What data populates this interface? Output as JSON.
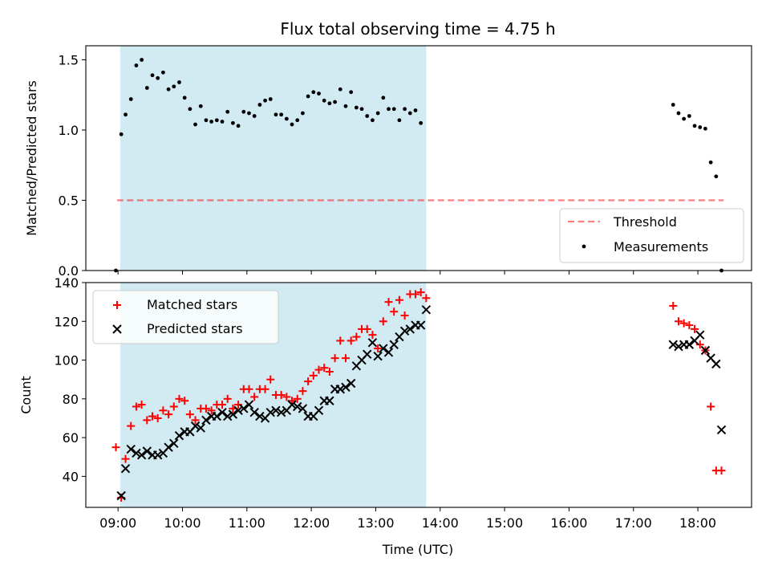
{
  "title": "Flux total observing time = 4.75 h",
  "colors": {
    "shade": "#add8e6",
    "threshold": "#ff0000",
    "measurement": "#000000",
    "matched": "#ff0000",
    "predicted": "#000000"
  },
  "chart_data": [
    {
      "type": "scatter",
      "panel": "top",
      "ylabel": "Matched/Predicted stars",
      "xlabel": "",
      "xlim": [
        "08:30",
        "18:50"
      ],
      "ylim": [
        0,
        1.6
      ],
      "yticks": [
        0.0,
        0.5,
        1.0,
        1.5
      ],
      "ytick_labels": [
        "0.0",
        "0.5",
        "1.0",
        "1.5"
      ],
      "shaded_interval": [
        "09:02",
        "13:47"
      ],
      "legend_position": "lower-right",
      "threshold": {
        "name": "Threshold",
        "value": 0.5,
        "x_range": [
          "08:59",
          "18:24"
        ]
      },
      "series": [
        {
          "name": "Measurements",
          "points": [
            [
              "08:58",
              0.0
            ],
            [
              "09:03",
              0.97
            ],
            [
              "09:07",
              1.11
            ],
            [
              "09:12",
              1.22
            ],
            [
              "09:17",
              1.46
            ],
            [
              "09:22",
              1.5
            ],
            [
              "09:27",
              1.3
            ],
            [
              "09:32",
              1.39
            ],
            [
              "09:37",
              1.37
            ],
            [
              "09:42",
              1.41
            ],
            [
              "09:47",
              1.29
            ],
            [
              "09:52",
              1.31
            ],
            [
              "09:57",
              1.34
            ],
            [
              "10:02",
              1.23
            ],
            [
              "10:07",
              1.15
            ],
            [
              "10:12",
              1.04
            ],
            [
              "10:17",
              1.17
            ],
            [
              "10:22",
              1.07
            ],
            [
              "10:27",
              1.06
            ],
            [
              "10:32",
              1.07
            ],
            [
              "10:37",
              1.06
            ],
            [
              "10:42",
              1.13
            ],
            [
              "10:47",
              1.05
            ],
            [
              "10:52",
              1.03
            ],
            [
              "10:57",
              1.13
            ],
            [
              "11:02",
              1.12
            ],
            [
              "11:07",
              1.1
            ],
            [
              "11:12",
              1.18
            ],
            [
              "11:17",
              1.21
            ],
            [
              "11:22",
              1.22
            ],
            [
              "11:27",
              1.11
            ],
            [
              "11:32",
              1.11
            ],
            [
              "11:37",
              1.08
            ],
            [
              "11:42",
              1.04
            ],
            [
              "11:47",
              1.07
            ],
            [
              "11:52",
              1.12
            ],
            [
              "11:57",
              1.24
            ],
            [
              "12:02",
              1.27
            ],
            [
              "12:07",
              1.26
            ],
            [
              "12:12",
              1.21
            ],
            [
              "12:17",
              1.19
            ],
            [
              "12:22",
              1.2
            ],
            [
              "12:27",
              1.29
            ],
            [
              "12:32",
              1.17
            ],
            [
              "12:37",
              1.27
            ],
            [
              "12:42",
              1.16
            ],
            [
              "12:47",
              1.15
            ],
            [
              "12:52",
              1.1
            ],
            [
              "12:57",
              1.07
            ],
            [
              "13:02",
              1.12
            ],
            [
              "13:07",
              1.23
            ],
            [
              "13:12",
              1.15
            ],
            [
              "13:17",
              1.15
            ],
            [
              "13:22",
              1.07
            ],
            [
              "13:27",
              1.15
            ],
            [
              "13:32",
              1.12
            ],
            [
              "13:37",
              1.14
            ],
            [
              "13:42",
              1.05
            ],
            [
              "17:37",
              1.18
            ],
            [
              "17:42",
              1.12
            ],
            [
              "17:47",
              1.08
            ],
            [
              "17:52",
              1.1
            ],
            [
              "17:57",
              1.03
            ],
            [
              "18:02",
              1.02
            ],
            [
              "18:07",
              1.01
            ],
            [
              "18:12",
              0.77
            ],
            [
              "18:17",
              0.67
            ],
            [
              "18:22",
              0.0
            ]
          ]
        }
      ]
    },
    {
      "type": "scatter",
      "panel": "bottom",
      "ylabel": "Count",
      "xlabel": "Time (UTC)",
      "xlim": [
        "08:30",
        "18:50"
      ],
      "ylim": [
        24,
        140
      ],
      "yticks": [
        40,
        60,
        80,
        100,
        120,
        140
      ],
      "ytick_labels": [
        "40",
        "60",
        "80",
        "100",
        "120",
        "140"
      ],
      "xticks": [
        "09:00",
        "10:00",
        "11:00",
        "12:00",
        "13:00",
        "14:00",
        "15:00",
        "16:00",
        "17:00",
        "18:00"
      ],
      "shaded_interval": [
        "09:02",
        "13:47"
      ],
      "legend_position": "upper-left",
      "series": [
        {
          "name": "Matched stars",
          "marker": "plus",
          "points": [
            [
              "08:58",
              55
            ],
            [
              "09:03",
              29
            ],
            [
              "09:07",
              49
            ],
            [
              "09:12",
              66
            ],
            [
              "09:17",
              76
            ],
            [
              "09:22",
              77
            ],
            [
              "09:27",
              69
            ],
            [
              "09:32",
              71
            ],
            [
              "09:37",
              70
            ],
            [
              "09:42",
              74
            ],
            [
              "09:47",
              72
            ],
            [
              "09:52",
              76
            ],
            [
              "09:57",
              80
            ],
            [
              "10:02",
              79
            ],
            [
              "10:07",
              72
            ],
            [
              "10:12",
              69
            ],
            [
              "10:17",
              75
            ],
            [
              "10:22",
              75
            ],
            [
              "10:27",
              74
            ],
            [
              "10:32",
              77
            ],
            [
              "10:37",
              77
            ],
            [
              "10:42",
              80
            ],
            [
              "10:47",
              75
            ],
            [
              "10:52",
              77
            ],
            [
              "10:57",
              85
            ],
            [
              "11:02",
              85
            ],
            [
              "11:07",
              81
            ],
            [
              "11:12",
              85
            ],
            [
              "11:17",
              85
            ],
            [
              "11:22",
              90
            ],
            [
              "11:27",
              82
            ],
            [
              "11:32",
              82
            ],
            [
              "11:37",
              81
            ],
            [
              "11:42",
              79
            ],
            [
              "11:47",
              80
            ],
            [
              "11:52",
              84
            ],
            [
              "11:57",
              89
            ],
            [
              "12:02",
              92
            ],
            [
              "12:07",
              95
            ],
            [
              "12:12",
              96
            ],
            [
              "12:17",
              94
            ],
            [
              "12:22",
              101
            ],
            [
              "12:27",
              110
            ],
            [
              "12:32",
              101
            ],
            [
              "12:37",
              110
            ],
            [
              "12:42",
              112
            ],
            [
              "12:47",
              116
            ],
            [
              "12:52",
              116
            ],
            [
              "12:57",
              113
            ],
            [
              "13:02",
              106
            ],
            [
              "13:07",
              120
            ],
            [
              "13:12",
              130
            ],
            [
              "13:17",
              125
            ],
            [
              "13:22",
              131
            ],
            [
              "13:27",
              123
            ],
            [
              "13:32",
              134
            ],
            [
              "13:37",
              134
            ],
            [
              "13:42",
              135
            ],
            [
              "13:47",
              132
            ],
            [
              "17:37",
              128
            ],
            [
              "17:42",
              120
            ],
            [
              "17:47",
              119
            ],
            [
              "17:52",
              118
            ],
            [
              "17:57",
              116
            ],
            [
              "18:02",
              108
            ],
            [
              "18:07",
              105
            ],
            [
              "18:12",
              76
            ],
            [
              "18:17",
              43
            ],
            [
              "18:22",
              43
            ]
          ]
        },
        {
          "name": "Predicted stars",
          "marker": "x",
          "points": [
            [
              "09:03",
              30
            ],
            [
              "09:07",
              44
            ],
            [
              "09:12",
              54
            ],
            [
              "09:17",
              52
            ],
            [
              "09:22",
              51
            ],
            [
              "09:27",
              53
            ],
            [
              "09:32",
              51
            ],
            [
              "09:37",
              51
            ],
            [
              "09:42",
              52
            ],
            [
              "09:47",
              55
            ],
            [
              "09:52",
              57
            ],
            [
              "09:57",
              61
            ],
            [
              "10:02",
              63
            ],
            [
              "10:07",
              63
            ],
            [
              "10:12",
              66
            ],
            [
              "10:17",
              65
            ],
            [
              "10:22",
              69
            ],
            [
              "10:27",
              71
            ],
            [
              "10:32",
              71
            ],
            [
              "10:37",
              73
            ],
            [
              "10:42",
              71
            ],
            [
              "10:47",
              72
            ],
            [
              "10:52",
              74
            ],
            [
              "10:57",
              75
            ],
            [
              "11:02",
              77
            ],
            [
              "11:07",
              73
            ],
            [
              "11:12",
              71
            ],
            [
              "11:17",
              70
            ],
            [
              "11:22",
              73
            ],
            [
              "11:27",
              74
            ],
            [
              "11:32",
              73
            ],
            [
              "11:37",
              74
            ],
            [
              "11:42",
              77
            ],
            [
              "11:47",
              76
            ],
            [
              "11:52",
              75
            ],
            [
              "11:57",
              71
            ],
            [
              "12:02",
              71
            ],
            [
              "12:07",
              74
            ],
            [
              "12:12",
              79
            ],
            [
              "12:17",
              79
            ],
            [
              "12:22",
              85
            ],
            [
              "12:27",
              85
            ],
            [
              "12:32",
              86
            ],
            [
              "12:37",
              88
            ],
            [
              "12:42",
              97
            ],
            [
              "12:47",
              100
            ],
            [
              "12:52",
              103
            ],
            [
              "12:57",
              109
            ],
            [
              "13:02",
              102
            ],
            [
              "13:07",
              106
            ],
            [
              "13:12",
              104
            ],
            [
              "13:17",
              108
            ],
            [
              "13:22",
              112
            ],
            [
              "13:27",
              115
            ],
            [
              "13:32",
              116
            ],
            [
              "13:37",
              118
            ],
            [
              "13:42",
              118
            ],
            [
              "13:47",
              126
            ],
            [
              "17:37",
              108
            ],
            [
              "17:42",
              107
            ],
            [
              "17:47",
              108
            ],
            [
              "17:52",
              108
            ],
            [
              "17:57",
              110
            ],
            [
              "18:02",
              113
            ],
            [
              "18:07",
              105
            ],
            [
              "18:12",
              101
            ],
            [
              "18:17",
              98
            ],
            [
              "18:22",
              64
            ]
          ]
        }
      ]
    }
  ]
}
